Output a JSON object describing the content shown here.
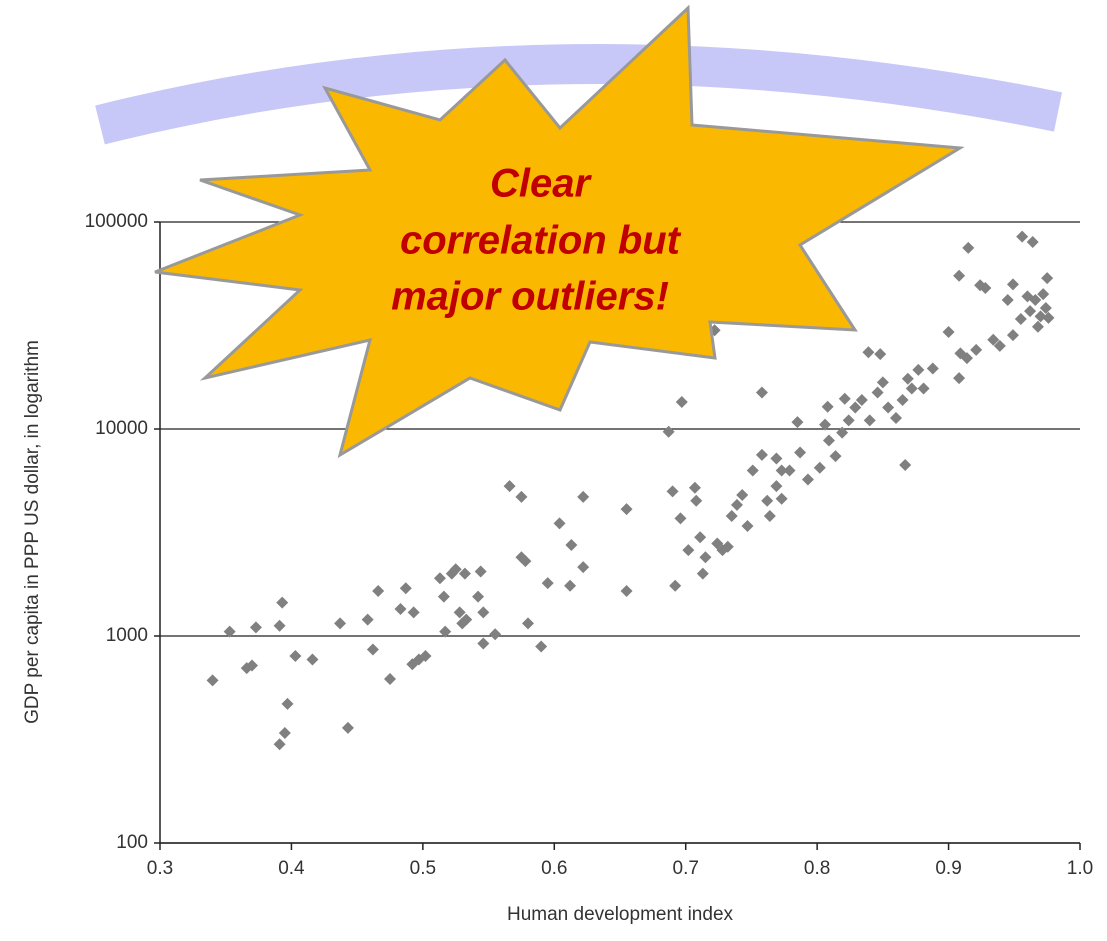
{
  "chart_data": {
    "type": "scatter",
    "x_label": "Human development index",
    "y_label": "GDP per capita in PPP US dollar, in logarithm",
    "annotation": [
      "Clear",
      "correlation but",
      "major outliers!"
    ],
    "color": "#808080",
    "log_y": true,
    "grid": true,
    "xlim": [
      0.3,
      1.0
    ],
    "ylim": [
      100,
      100000
    ],
    "xticks": [
      0.3,
      0.4,
      0.5,
      0.6,
      0.7,
      0.8,
      0.9,
      {
        "value": 1,
        "label": "1.0"
      }
    ],
    "yticks": [
      100,
      1000,
      10000,
      100000
    ],
    "x": [
      0.34,
      0.353,
      0.366,
      0.37,
      0.373,
      0.391,
      0.393,
      0.391,
      0.395,
      0.397,
      0.403,
      0.416,
      0.437,
      0.443,
      0.458,
      0.462,
      0.466,
      0.475,
      0.483,
      0.487,
      0.493,
      0.492,
      0.497,
      0.502,
      0.513,
      0.516,
      0.517,
      0.522,
      0.525,
      0.528,
      0.53,
      0.533,
      0.532,
      0.544,
      0.542,
      0.546,
      0.546,
      0.555,
      0.566,
      0.575,
      0.575,
      0.578,
      0.58,
      0.59,
      0.595,
      0.604,
      0.613,
      0.612,
      0.622,
      0.622,
      0.655,
      0.655,
      0.687,
      0.69,
      0.692,
      0.697,
      0.696,
      0.702,
      0.707,
      0.708,
      0.711,
      0.713,
      0.715,
      0.722,
      0.724,
      0.728,
      0.732,
      0.735,
      0.739,
      0.743,
      0.747,
      0.751,
      0.758,
      0.758,
      0.762,
      0.764,
      0.769,
      0.769,
      0.773,
      0.773,
      0.779,
      0.785,
      0.787,
      0.793,
      0.802,
      0.806,
      0.808,
      0.809,
      0.814,
      0.819,
      0.821,
      0.824,
      0.829,
      0.834,
      0.839,
      0.84,
      0.846,
      0.848,
      0.85,
      0.854,
      0.86,
      0.865,
      0.867,
      0.869,
      0.872,
      0.877,
      0.881,
      0.888,
      0.9,
      0.915,
      0.908,
      0.908,
      0.909,
      0.914,
      0.921,
      0.924,
      0.928,
      0.934,
      0.939,
      0.945,
      0.949,
      0.949,
      0.955,
      0.956,
      0.96,
      0.964,
      0.962,
      0.966,
      0.97,
      0.975,
      0.974,
      0.968,
      0.972,
      0.976
    ],
    "y": [
      610,
      1050,
      700,
      720,
      1100,
      1120,
      1450,
      300,
      340,
      470,
      800,
      770,
      1150,
      360,
      1200,
      860,
      1650,
      620,
      1350,
      1700,
      1300,
      730,
      770,
      800,
      1900,
      1550,
      1050,
      2000,
      2100,
      1300,
      1150,
      1200,
      2000,
      2050,
      1550,
      1300,
      920,
      1020,
      5300,
      4700,
      2400,
      2300,
      1150,
      890,
      1800,
      3500,
      2750,
      1750,
      4700,
      2150,
      4100,
      1650,
      9700,
      5000,
      1750,
      13500,
      3700,
      2600,
      5200,
      4500,
      3000,
      2000,
      2400,
      30000,
      2800,
      2600,
      2700,
      3800,
      4300,
      4800,
      3400,
      6300,
      15000,
      7500,
      4500,
      3800,
      7200,
      5300,
      6300,
      4600,
      6300,
      10800,
      7700,
      5700,
      6500,
      10500,
      12800,
      8800,
      7400,
      9600,
      14000,
      11000,
      12700,
      13800,
      23500,
      11000,
      15000,
      23000,
      16800,
      12700,
      11300,
      13800,
      6700,
      17500,
      15700,
      19300,
      15700,
      19600,
      29400,
      75000,
      55000,
      17600,
      23200,
      22000,
      24100,
      49500,
      48000,
      27000,
      25200,
      42000,
      50000,
      28400,
      34000,
      85000,
      43700,
      80000,
      37100,
      42000,
      35000,
      53600,
      38400,
      31200,
      44800,
      34400
    ]
  }
}
